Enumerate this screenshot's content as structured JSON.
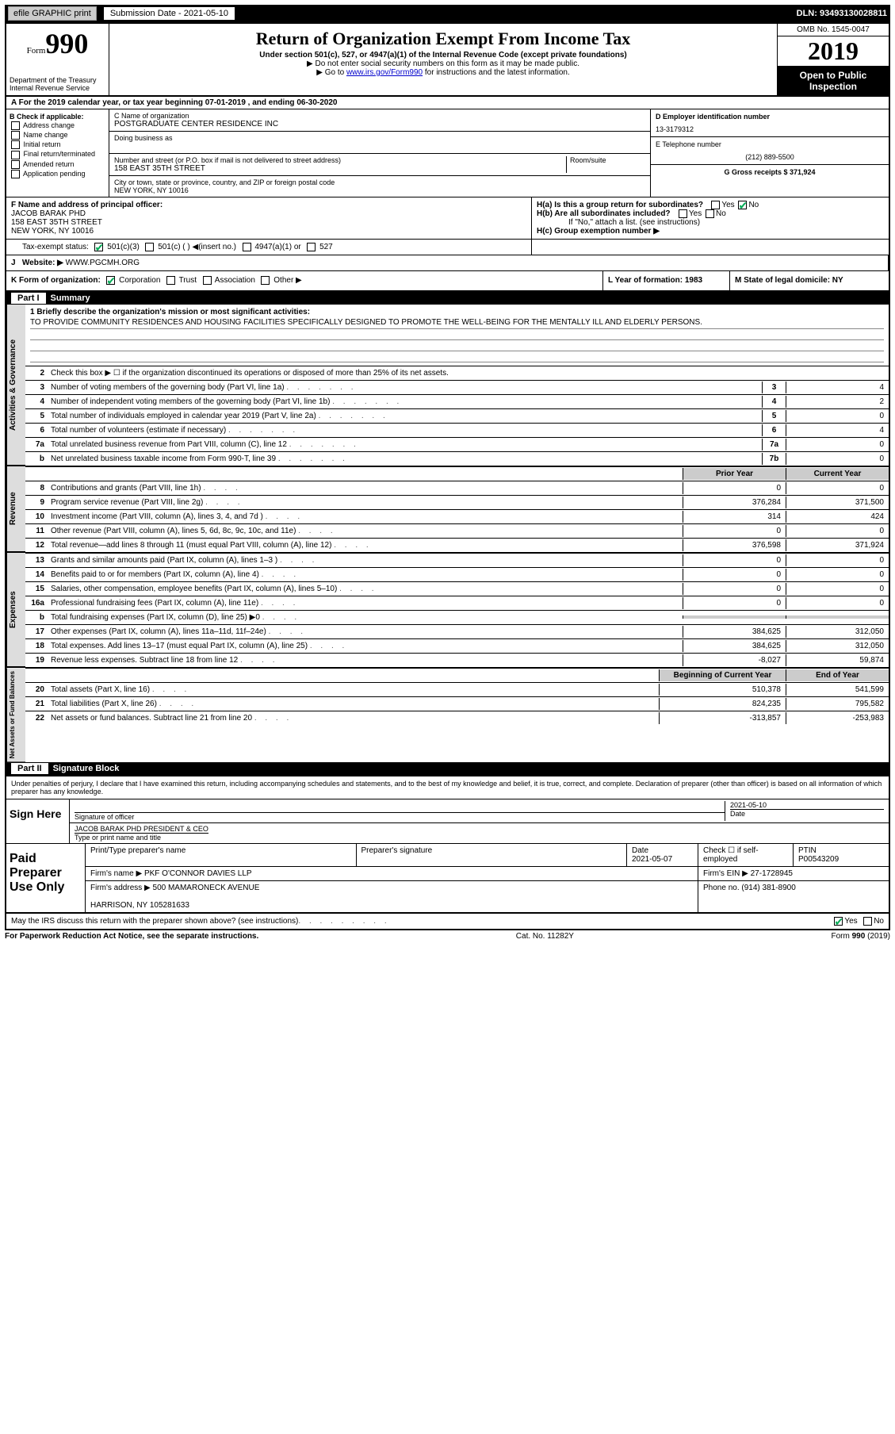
{
  "topbar": {
    "efile": "efile GRAPHIC print",
    "sub_label": "Submission Date - 2021-05-10",
    "dln": "DLN: 93493130028811"
  },
  "header": {
    "form_label": "Form",
    "form_num": "990",
    "dept": "Department of the Treasury\nInternal Revenue Service",
    "title": "Return of Organization Exempt From Income Tax",
    "sub1": "Under section 501(c), 527, or 4947(a)(1) of the Internal Revenue Code (except private foundations)",
    "sub2": "▶ Do not enter social security numbers on this form as it may be made public.",
    "sub3_pre": "▶ Go to ",
    "sub3_link": "www.irs.gov/Form990",
    "sub3_post": " for instructions and the latest information.",
    "omb": "OMB No. 1545-0047",
    "year": "2019",
    "open": "Open to Public Inspection"
  },
  "row_a": "A For the 2019 calendar year, or tax year beginning 07-01-2019   , and ending 06-30-2020",
  "section_b": {
    "label": "B Check if applicable:",
    "items": [
      "Address change",
      "Name change",
      "Initial return",
      "Final return/terminated",
      "Amended return",
      "Application pending"
    ],
    "c_label": "C Name of organization",
    "org_name": "POSTGRADUATE CENTER RESIDENCE INC",
    "dba_label": "Doing business as",
    "addr_label": "Number and street (or P.O. box if mail is not delivered to street address)",
    "room_label": "Room/suite",
    "addr": "158 EAST 35TH STREET",
    "city_label": "City or town, state or province, country, and ZIP or foreign postal code",
    "city": "NEW YORK, NY  10016",
    "d_label": "D Employer identification number",
    "ein": "13-3179312",
    "e_label": "E Telephone number",
    "tel": "(212) 889-5500",
    "g_label": "G Gross receipts $ 371,924"
  },
  "section_f": {
    "f_label": "F  Name and address of principal officer:",
    "officer": "JACOB BARAK PHD",
    "officer_addr1": "158 EAST 35TH STREET",
    "officer_addr2": "NEW YORK, NY  10016",
    "ha": "H(a)  Is this a group return for subordinates?",
    "hb": "H(b)  Are all subordinates included?",
    "hb_note": "If \"No,\" attach a list. (see instructions)",
    "hc": "H(c)  Group exemption number ▶"
  },
  "tax_exempt": {
    "label": "Tax-exempt status:",
    "c3": "501(c)(3)",
    "c": "501(c) (  ) ◀(insert no.)",
    "a1": "4947(a)(1) or",
    "s527": "527"
  },
  "website": {
    "j": "J",
    "label": "Website: ▶",
    "url": "WWW.PGCMH.ORG"
  },
  "form_org": {
    "k": "K Form of organization:",
    "corp": "Corporation",
    "trust": "Trust",
    "assoc": "Association",
    "other": "Other ▶",
    "l": "L Year of formation: 1983",
    "m": "M State of legal domicile: NY"
  },
  "part1": {
    "header": "Summary",
    "mission_label": "1  Briefly describe the organization's mission or most significant activities:",
    "mission": "TO PROVIDE COMMUNITY RESIDENCES AND HOUSING FACILITIES SPECIFICALLY DESIGNED TO PROMOTE THE WELL-BEING FOR THE MENTALLY ILL AND ELDERLY PERSONS.",
    "line2": "Check this box ▶ ☐ if the organization discontinued its operations or disposed of more than 25% of its net assets.",
    "lines_gov": [
      {
        "n": "3",
        "d": "Number of voting members of the governing body (Part VI, line 1a)",
        "box": "3",
        "v": "4"
      },
      {
        "n": "4",
        "d": "Number of independent voting members of the governing body (Part VI, line 1b)",
        "box": "4",
        "v": "2"
      },
      {
        "n": "5",
        "d": "Total number of individuals employed in calendar year 2019 (Part V, line 2a)",
        "box": "5",
        "v": "0"
      },
      {
        "n": "6",
        "d": "Total number of volunteers (estimate if necessary)",
        "box": "6",
        "v": "4"
      },
      {
        "n": "7a",
        "d": "Total unrelated business revenue from Part VIII, column (C), line 12",
        "box": "7a",
        "v": "0"
      },
      {
        "n": "b",
        "d": "Net unrelated business taxable income from Form 990-T, line 39",
        "box": "7b",
        "v": "0"
      }
    ],
    "col_prior": "Prior Year",
    "col_current": "Current Year",
    "lines_rev": [
      {
        "n": "8",
        "d": "Contributions and grants (Part VIII, line 1h)",
        "p": "0",
        "c": "0"
      },
      {
        "n": "9",
        "d": "Program service revenue (Part VIII, line 2g)",
        "p": "376,284",
        "c": "371,500"
      },
      {
        "n": "10",
        "d": "Investment income (Part VIII, column (A), lines 3, 4, and 7d )",
        "p": "314",
        "c": "424"
      },
      {
        "n": "11",
        "d": "Other revenue (Part VIII, column (A), lines 5, 6d, 8c, 9c, 10c, and 11e)",
        "p": "0",
        "c": "0"
      },
      {
        "n": "12",
        "d": "Total revenue—add lines 8 through 11 (must equal Part VIII, column (A), line 12)",
        "p": "376,598",
        "c": "371,924"
      }
    ],
    "lines_exp": [
      {
        "n": "13",
        "d": "Grants and similar amounts paid (Part IX, column (A), lines 1–3 )",
        "p": "0",
        "c": "0"
      },
      {
        "n": "14",
        "d": "Benefits paid to or for members (Part IX, column (A), line 4)",
        "p": "0",
        "c": "0"
      },
      {
        "n": "15",
        "d": "Salaries, other compensation, employee benefits (Part IX, column (A), lines 5–10)",
        "p": "0",
        "c": "0"
      },
      {
        "n": "16a",
        "d": "Professional fundraising fees (Part IX, column (A), line 11e)",
        "p": "0",
        "c": "0"
      },
      {
        "n": "b",
        "d": "Total fundraising expenses (Part IX, column (D), line 25) ▶0",
        "p": "",
        "c": "",
        "shaded": true
      },
      {
        "n": "17",
        "d": "Other expenses (Part IX, column (A), lines 11a–11d, 11f–24e)",
        "p": "384,625",
        "c": "312,050"
      },
      {
        "n": "18",
        "d": "Total expenses. Add lines 13–17 (must equal Part IX, column (A), line 25)",
        "p": "384,625",
        "c": "312,050"
      },
      {
        "n": "19",
        "d": "Revenue less expenses. Subtract line 18 from line 12",
        "p": "-8,027",
        "c": "59,874"
      }
    ],
    "col_begin": "Beginning of Current Year",
    "col_end": "End of Year",
    "lines_net": [
      {
        "n": "20",
        "d": "Total assets (Part X, line 16)",
        "p": "510,378",
        "c": "541,599"
      },
      {
        "n": "21",
        "d": "Total liabilities (Part X, line 26)",
        "p": "824,235",
        "c": "795,582"
      },
      {
        "n": "22",
        "d": "Net assets or fund balances. Subtract line 21 from line 20",
        "p": "-313,857",
        "c": "-253,983"
      }
    ]
  },
  "part2": {
    "header": "Signature Block",
    "declare": "Under penalties of perjury, I declare that I have examined this return, including accompanying schedules and statements, and to the best of my knowledge and belief, it is true, correct, and complete. Declaration of preparer (other than officer) is based on all information of which preparer has any knowledge.",
    "sign_here": "Sign Here",
    "sig_officer": "Signature of officer",
    "sig_date": "2021-05-10",
    "date_label": "Date",
    "officer_name": "JACOB BARAK PHD  PRESIDENT & CEO",
    "type_label": "Type or print name and title",
    "paid": "Paid Preparer Use Only",
    "prep_name_label": "Print/Type preparer's name",
    "prep_sig_label": "Preparer's signature",
    "prep_date": "2021-05-07",
    "check_self": "Check ☐ if self-employed",
    "ptin_label": "PTIN",
    "ptin": "P00543209",
    "firm_name_label": "Firm's name    ▶",
    "firm_name": "PKF O'CONNOR DAVIES LLP",
    "firm_ein_label": "Firm's EIN ▶",
    "firm_ein": "27-1728945",
    "firm_addr_label": "Firm's address ▶",
    "firm_addr1": "500 MAMARONECK AVENUE",
    "firm_addr2": "HARRISON, NY  105281633",
    "phone_label": "Phone no.",
    "phone": "(914) 381-8900",
    "discuss": "May the IRS discuss this return with the preparer shown above? (see instructions)",
    "footer1": "For Paperwork Reduction Act Notice, see the separate instructions.",
    "footer2": "Cat. No. 11282Y",
    "footer3": "Form 990 (2019)"
  }
}
